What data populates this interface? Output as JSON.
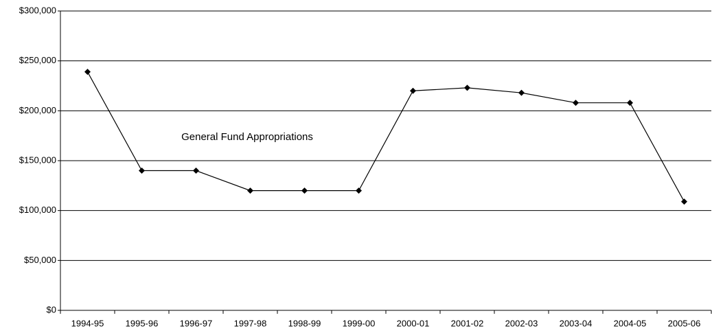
{
  "chart_data": {
    "type": "line",
    "annotation": "General Fund Appropriations",
    "categories": [
      "1994-95",
      "1995-96",
      "1996-97",
      "1997-98",
      "1998-99",
      "1999-00",
      "2000-01",
      "2001-02",
      "2002-03",
      "2003-04",
      "2004-05",
      "2005-06"
    ],
    "series": [
      {
        "color": "#000000",
        "values": [
          239000,
          140000,
          140000,
          120000,
          120000,
          120000,
          220000,
          223000,
          218000,
          208000,
          208000,
          109000
        ]
      }
    ],
    "ylim": [
      0,
      300000
    ],
    "yticks": [
      {
        "value": 0,
        "label": "$0"
      },
      {
        "value": 50000,
        "label": "$50,000"
      },
      {
        "value": 100000,
        "label": "$100,000"
      },
      {
        "value": 150000,
        "label": "$150,000"
      },
      {
        "value": 200000,
        "label": "$200,000"
      },
      {
        "value": 250000,
        "label": "$250,000"
      },
      {
        "value": 300000,
        "label": "$300,000"
      }
    ],
    "grid": true
  }
}
